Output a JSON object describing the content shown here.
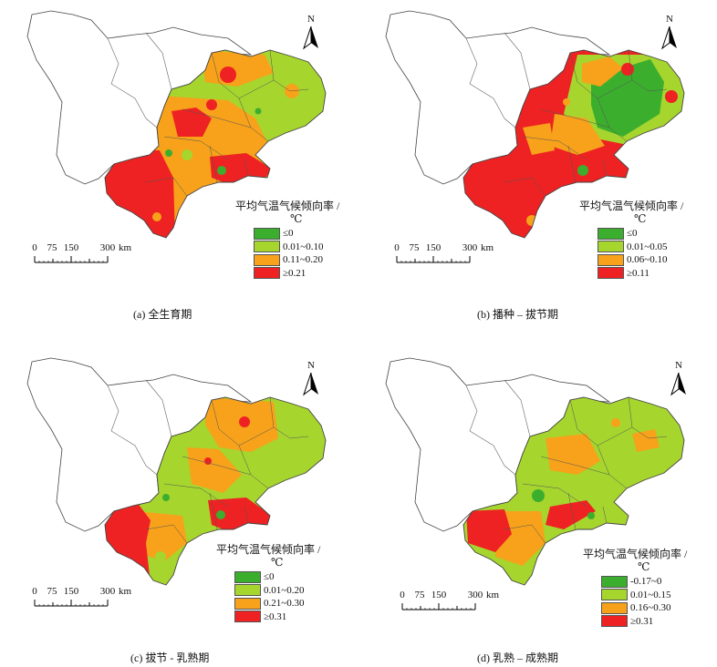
{
  "legend_title": "平均气温气候倾向率 /",
  "legend_unit": "℃",
  "north_label": "N",
  "scale": {
    "ticks": [
      "0",
      "75",
      "150",
      "300"
    ],
    "unit": "km"
  },
  "colors": {
    "c1": "#3cae2e",
    "c2": "#a6d52e",
    "c3": "#f7a21a",
    "c4": "#ee2222",
    "outline": "#444444"
  },
  "panels": [
    {
      "id": "a",
      "caption": "(a)  全生育期",
      "legend": [
        "≤0",
        "0.01~0.10",
        "0.11~0.20",
        "≥0.21"
      ]
    },
    {
      "id": "b",
      "caption": "(b)  播种 – 拔节期",
      "legend": [
        "≤0",
        "0.01~0.05",
        "0.06~0.10",
        "≥0.11"
      ]
    },
    {
      "id": "c",
      "caption": "(c)  拔节 - 乳熟期",
      "legend": [
        "≤0",
        "0.01~0.20",
        "0.21~0.30",
        "≥0.31"
      ]
    },
    {
      "id": "d",
      "caption": "(d)  乳熟 – 成熟期",
      "legend": [
        "-0.17~0",
        "0.01~0.15",
        "0.16~0.30",
        "≥0.31"
      ]
    }
  ]
}
